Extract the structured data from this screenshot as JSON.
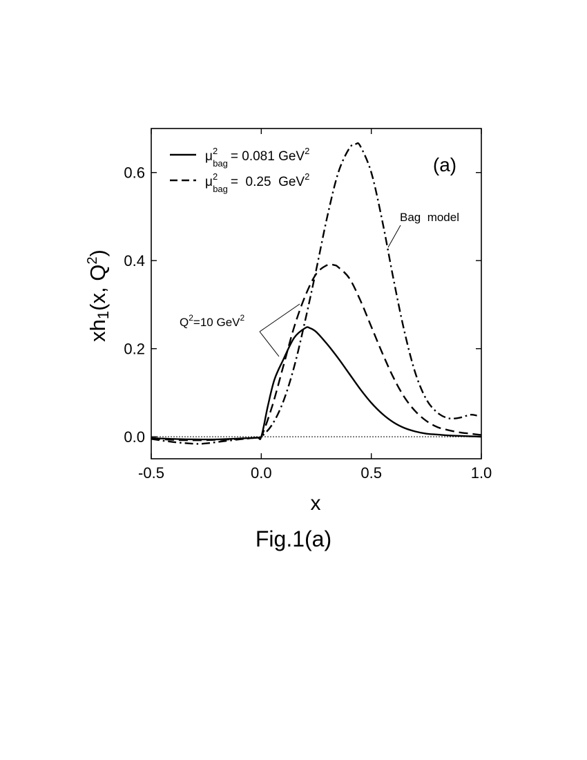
{
  "chart_data": {
    "type": "line",
    "panel_label": "(a)",
    "xlabel": "x",
    "ylabel_main": "xh",
    "ylabel_sub": "1",
    "ylabel_args": "(x, Q",
    "ylabel_sup": "2",
    "ylabel_close": ")",
    "xlim": [
      -0.5,
      1.0
    ],
    "ylim": [
      -0.05,
      0.7
    ],
    "x_ticks": [
      {
        "value": -0.5,
        "label": "-0.5"
      },
      {
        "value": 0.0,
        "label": "0.0"
      },
      {
        "value": 0.5,
        "label": "0.5"
      },
      {
        "value": 1.0,
        "label": "1.0"
      }
    ],
    "y_ticks": [
      {
        "value": 0.0,
        "label": "0.0"
      },
      {
        "value": 0.2,
        "label": "0.2"
      },
      {
        "value": 0.4,
        "label": "0.4"
      },
      {
        "value": 0.6,
        "label": "0.6"
      }
    ],
    "grid": false,
    "zero_line": true,
    "legend_position": "top-left",
    "legend": [
      {
        "series": "solid",
        "prefix": "μ",
        "sup": "2",
        "sub": "bag",
        "value": "= 0.081 GeV",
        "unit_sup": "2"
      },
      {
        "series": "dashed",
        "prefix": "μ",
        "sup": "2",
        "sub": "bag",
        "value": "=  0.25  GeV",
        "unit_sup": "2"
      }
    ],
    "annotations": {
      "bag_model": "Bag  model",
      "q2_prefix": "Q",
      "q2_sup": "2",
      "q2_value": "=10 GeV",
      "q2_unit_sup": "2"
    },
    "series": [
      {
        "style": "solid",
        "x": [
          -0.5,
          -0.4,
          -0.3,
          -0.2,
          -0.1,
          -0.02,
          0.0,
          0.03,
          0.06,
          0.1,
          0.15,
          0.2,
          0.22,
          0.25,
          0.3,
          0.35,
          0.4,
          0.45,
          0.5,
          0.55,
          0.6,
          0.65,
          0.7,
          0.75,
          0.8,
          0.85,
          0.9,
          0.95,
          1.0
        ],
        "y": [
          -0.003,
          -0.005,
          -0.006,
          -0.006,
          -0.004,
          -0.002,
          0.0,
          0.07,
          0.13,
          0.175,
          0.225,
          0.247,
          0.247,
          0.238,
          0.21,
          0.178,
          0.143,
          0.108,
          0.077,
          0.052,
          0.033,
          0.02,
          0.012,
          0.007,
          0.005,
          0.003,
          0.002,
          0.001,
          0.0
        ]
      },
      {
        "style": "dashed",
        "x": [
          -0.5,
          -0.4,
          -0.3,
          -0.2,
          -0.1,
          -0.02,
          0.0,
          0.05,
          0.1,
          0.15,
          0.2,
          0.25,
          0.3,
          0.33,
          0.35,
          0.4,
          0.45,
          0.5,
          0.55,
          0.6,
          0.65,
          0.7,
          0.75,
          0.8,
          0.85,
          0.9,
          0.95,
          1.0
        ],
        "y": [
          -0.004,
          -0.007,
          -0.008,
          -0.007,
          -0.005,
          -0.002,
          0.0,
          0.07,
          0.16,
          0.25,
          0.32,
          0.37,
          0.39,
          0.39,
          0.385,
          0.36,
          0.31,
          0.25,
          0.19,
          0.135,
          0.09,
          0.058,
          0.036,
          0.022,
          0.015,
          0.01,
          0.007,
          0.004
        ]
      },
      {
        "style": "dashdot",
        "x": [
          -0.5,
          -0.4,
          -0.3,
          -0.25,
          -0.2,
          -0.1,
          -0.02,
          0.0,
          0.05,
          0.1,
          0.15,
          0.2,
          0.25,
          0.3,
          0.35,
          0.4,
          0.43,
          0.45,
          0.5,
          0.55,
          0.6,
          0.65,
          0.7,
          0.75,
          0.8,
          0.85,
          0.9,
          0.95,
          0.98
        ],
        "y": [
          -0.005,
          -0.012,
          -0.016,
          -0.015,
          -0.012,
          -0.006,
          -0.002,
          0.0,
          0.028,
          0.08,
          0.16,
          0.265,
          0.38,
          0.5,
          0.6,
          0.655,
          0.665,
          0.66,
          0.6,
          0.49,
          0.36,
          0.24,
          0.145,
          0.085,
          0.055,
          0.042,
          0.043,
          0.05,
          0.048
        ]
      }
    ]
  },
  "caption": "Fig.1(a)"
}
